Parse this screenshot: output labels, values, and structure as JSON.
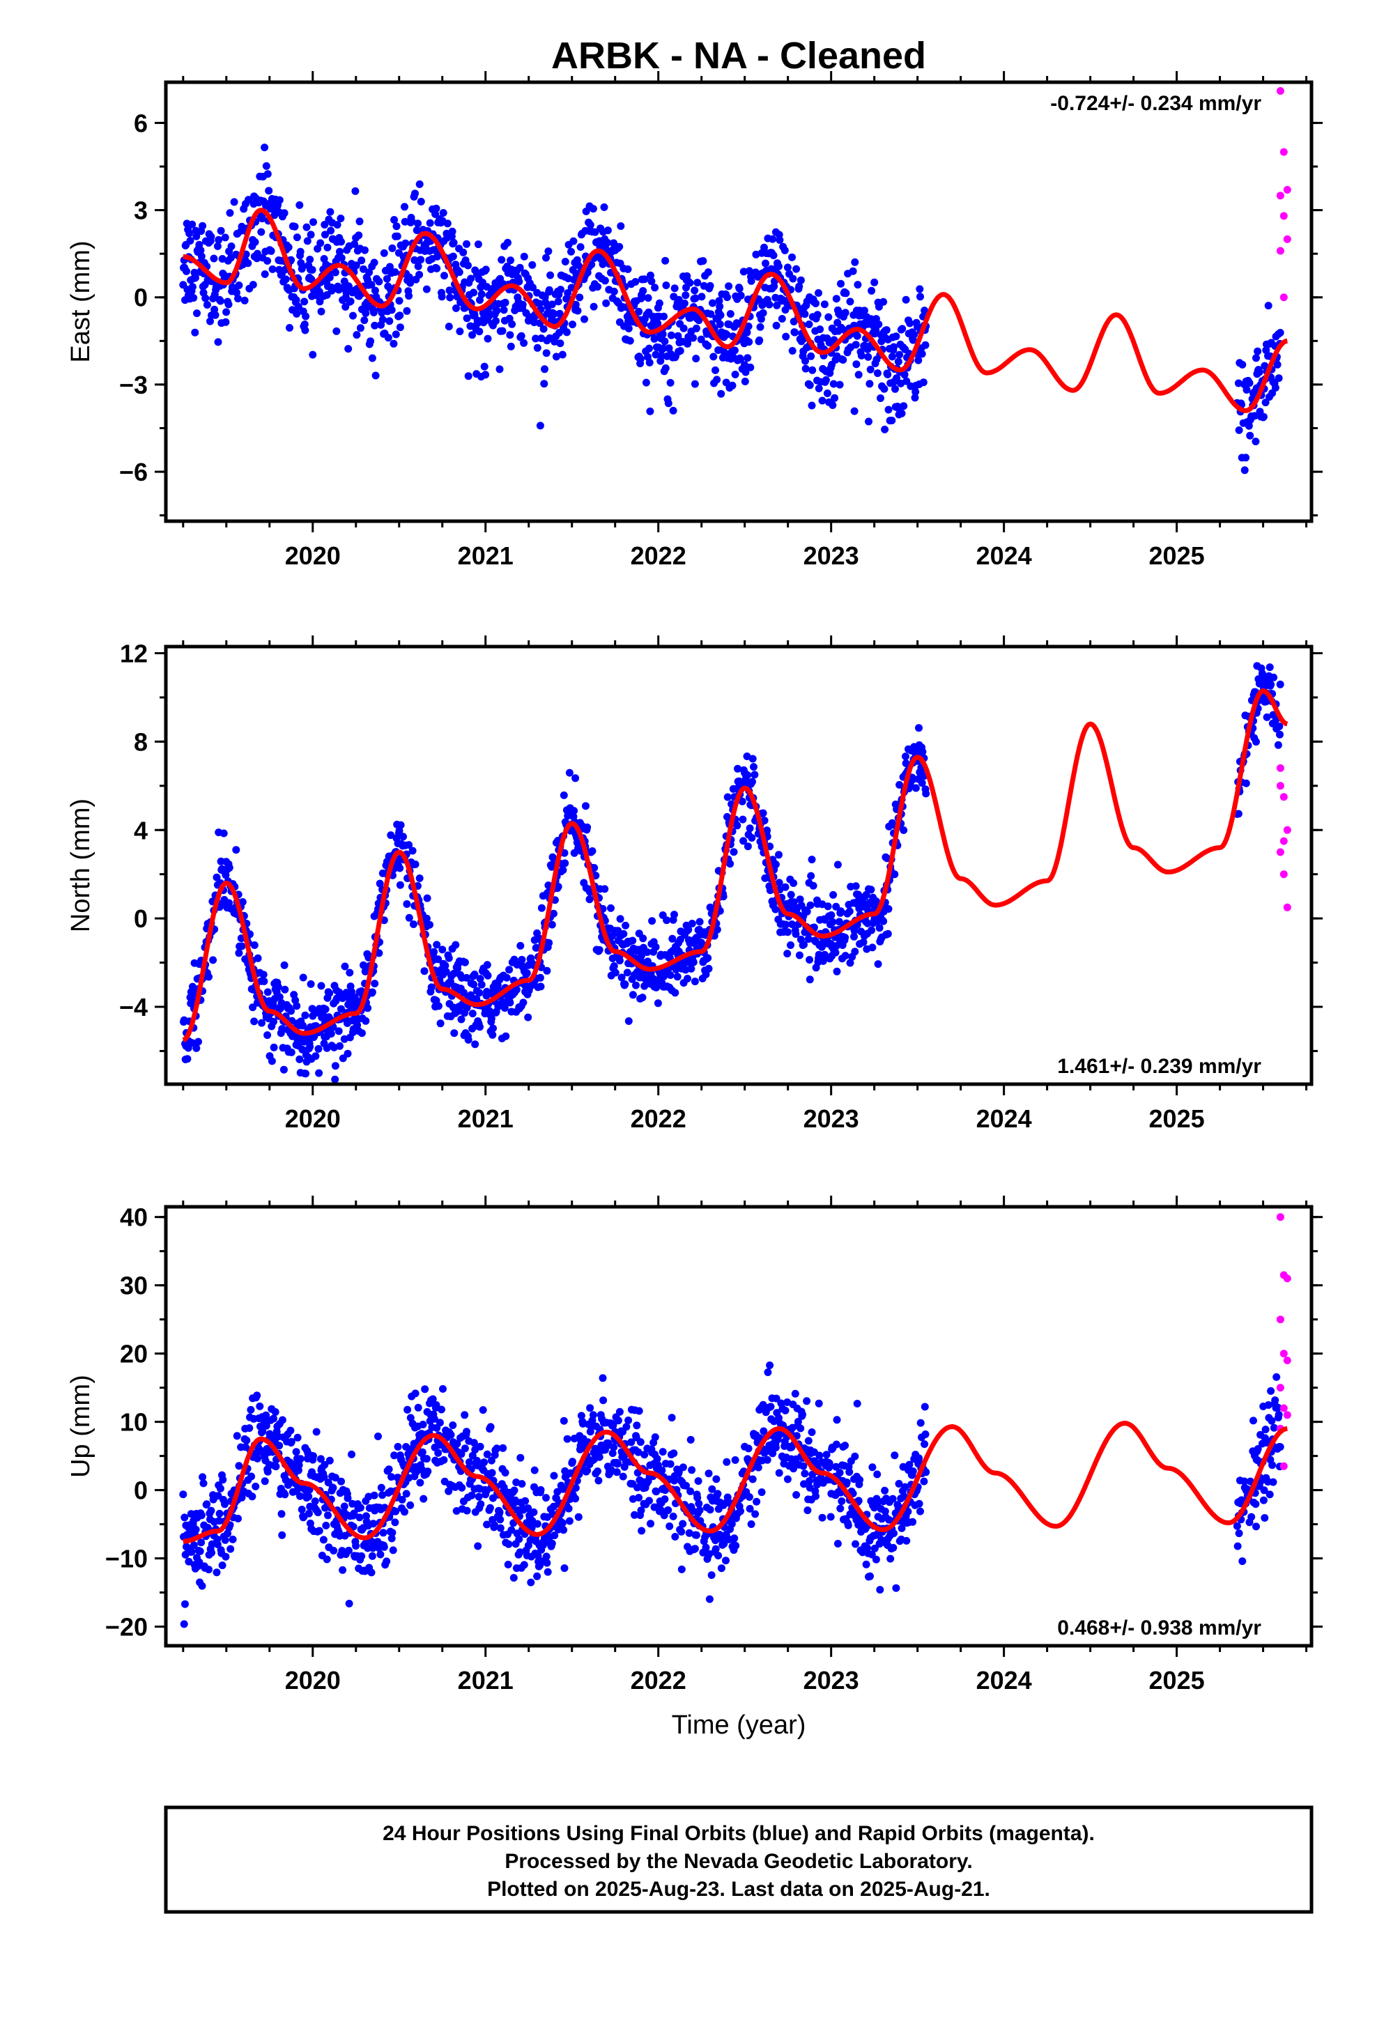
{
  "title": "ARBK  - NA - Cleaned",
  "xlabel": "Time (year)",
  "footer": {
    "line1": "24 Hour Positions Using Final Orbits (blue) and Rapid Orbits (magenta).",
    "line2": "Processed by the Nevada Geodetic Laboratory.",
    "line3": "Plotted on 2025-Aug-23. Last data on 2025-Aug-21."
  },
  "colors": {
    "final": "#0000ff",
    "rapid": "#ff00ff",
    "model": "#ff0000",
    "frame": "#000000"
  },
  "chart_data": [
    {
      "type": "scatter",
      "component": "east",
      "ylabel": "East (mm)",
      "rate": "-0.724+/- 0.234 mm/yr",
      "xlim": [
        2019.15,
        2025.78
      ],
      "ylim": [
        -7.7,
        7.4
      ],
      "xticks": [
        2020,
        2021,
        2022,
        2023,
        2024,
        2025
      ],
      "yticks": [
        -6,
        -3,
        0,
        3,
        6
      ],
      "ytick_labels": [
        "−6",
        "−3",
        "0",
        "3",
        "6"
      ],
      "final_ranges": [
        [
          2019.25,
          2023.55
        ],
        [
          2025.35,
          2025.6
        ]
      ],
      "rapid_range": [
        2025.6,
        2025.64
      ],
      "rapid_values": [
        7.1,
        5.0,
        3.7,
        3.5,
        2.8,
        2.0,
        1.6,
        0.0
      ],
      "model_x": [
        2019.25,
        2019.5,
        2019.7,
        2019.95,
        2020.15,
        2020.4,
        2020.65,
        2020.95,
        2021.15,
        2021.4,
        2021.65,
        2021.95,
        2022.2,
        2022.4,
        2022.65,
        2022.95,
        2023.15,
        2023.4,
        2023.65,
        2023.9,
        2024.15,
        2024.4,
        2024.65,
        2024.9,
        2025.15,
        2025.4,
        2025.64
      ],
      "model_y": [
        1.4,
        0.5,
        3.0,
        0.3,
        1.1,
        -0.3,
        2.2,
        -0.4,
        0.4,
        -1.0,
        1.6,
        -1.2,
        -0.4,
        -1.7,
        0.8,
        -1.9,
        -1.1,
        -2.5,
        0.1,
        -2.6,
        -1.8,
        -3.2,
        -0.6,
        -3.3,
        -2.5,
        -3.9,
        -1.5
      ],
      "noise": 1.1
    },
    {
      "type": "scatter",
      "component": "north",
      "ylabel": "North (mm)",
      "rate": "1.461+/- 0.239 mm/yr",
      "xlim": [
        2019.15,
        2025.78
      ],
      "ylim": [
        -7.5,
        12.3
      ],
      "xticks": [
        2020,
        2021,
        2022,
        2023,
        2024,
        2025
      ],
      "yticks": [
        -4,
        0,
        4,
        8,
        12
      ],
      "ytick_labels": [
        "−4",
        "0",
        "4",
        "8",
        "12"
      ],
      "final_ranges": [
        [
          2019.25,
          2023.55
        ],
        [
          2025.35,
          2025.6
        ]
      ],
      "rapid_range": [
        2025.6,
        2025.64
      ],
      "rapid_values": [
        6.8,
        5.5,
        4.0,
        3.0,
        2.0,
        0.5,
        6.0,
        3.5
      ],
      "model_x": [
        2019.25,
        2019.5,
        2019.75,
        2019.95,
        2020.25,
        2020.5,
        2020.75,
        2020.95,
        2021.25,
        2021.5,
        2021.75,
        2021.95,
        2022.25,
        2022.5,
        2022.75,
        2022.95,
        2023.25,
        2023.5,
        2023.75,
        2023.95,
        2024.25,
        2024.5,
        2024.75,
        2024.95,
        2025.25,
        2025.5,
        2025.64
      ],
      "model_y": [
        -5.5,
        1.6,
        -4.2,
        -5.2,
        -4.3,
        3.0,
        -3.2,
        -3.9,
        -2.8,
        4.3,
        -1.5,
        -2.3,
        -1.5,
        5.9,
        0.2,
        -0.8,
        0.2,
        7.3,
        1.8,
        0.6,
        1.7,
        8.8,
        3.2,
        2.1,
        3.2,
        10.3,
        8.8
      ],
      "noise": 1.0
    },
    {
      "type": "scatter",
      "component": "up",
      "ylabel": "Up (mm)",
      "rate": "0.468+/- 0.938 mm/yr",
      "xlim": [
        2019.15,
        2025.78
      ],
      "ylim": [
        -22.8,
        41.5
      ],
      "xticks": [
        2020,
        2021,
        2022,
        2023,
        2024,
        2025
      ],
      "yticks": [
        -20,
        -10,
        0,
        10,
        20,
        30,
        40
      ],
      "ytick_labels": [
        "−20",
        "−10",
        "0",
        "10",
        "20",
        "30",
        "40"
      ],
      "final_ranges": [
        [
          2019.25,
          2023.55
        ],
        [
          2025.35,
          2025.6
        ]
      ],
      "rapid_range": [
        2025.6,
        2025.64
      ],
      "rapid_values": [
        40.0,
        31.5,
        31.0,
        25.0,
        20.0,
        19.0,
        15.0,
        12.0,
        11.0,
        9.0,
        3.5
      ],
      "model_x": [
        2019.25,
        2019.45,
        2019.7,
        2019.95,
        2020.3,
        2020.7,
        2020.95,
        2021.3,
        2021.7,
        2021.95,
        2022.3,
        2022.7,
        2022.95,
        2023.3,
        2023.7,
        2023.95,
        2024.3,
        2024.7,
        2024.95,
        2025.3,
        2025.64
      ],
      "model_y": [
        -7.5,
        -6.0,
        7.5,
        1.0,
        -7.0,
        8.0,
        2.0,
        -6.5,
        8.5,
        2.5,
        -6.0,
        9.0,
        2.5,
        -5.8,
        9.3,
        2.5,
        -5.3,
        9.8,
        3.2,
        -4.8,
        9.0
      ],
      "noise": 4.2
    }
  ]
}
